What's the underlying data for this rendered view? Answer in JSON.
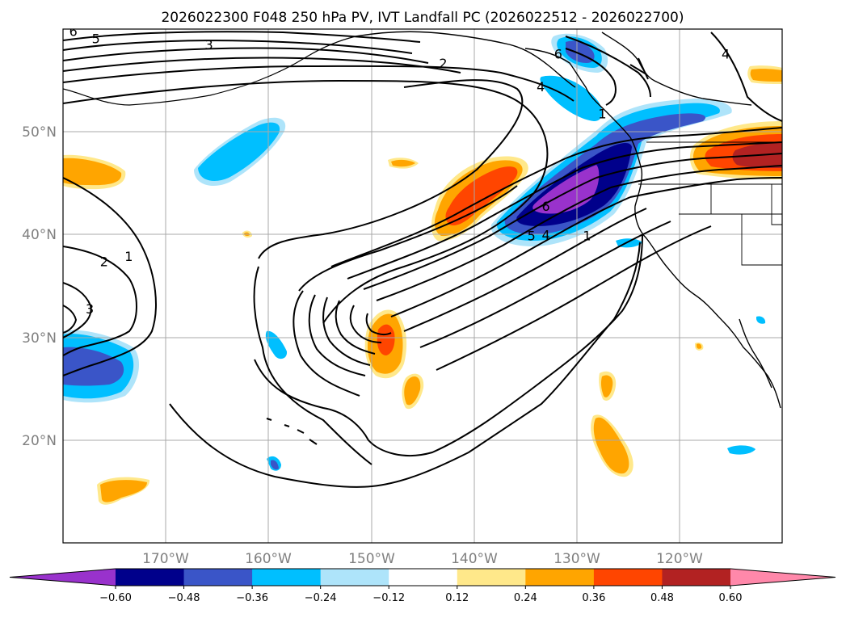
{
  "chart_data": {
    "type": "map-contour",
    "title": "2026022300 F048 250 hPa PV, IVT Landfall PC (2026022512 - 2026022700)",
    "lon_range": [
      180,
      110
    ],
    "lat_range": [
      10,
      60
    ],
    "x_ticks": [
      {
        "lon": 170,
        "label": "170°W"
      },
      {
        "lon": 160,
        "label": "160°W"
      },
      {
        "lon": 150,
        "label": "150°W"
      },
      {
        "lon": 140,
        "label": "140°W"
      },
      {
        "lon": 130,
        "label": "130°W"
      },
      {
        "lon": 120,
        "label": "120°W"
      }
    ],
    "y_ticks": [
      {
        "lat": 50,
        "label": "50°N"
      },
      {
        "lat": 40,
        "label": "40°N"
      },
      {
        "lat": 30,
        "label": "30°N"
      },
      {
        "lat": 20,
        "label": "20°N"
      }
    ],
    "colorbar": {
      "levels": [
        -0.6,
        -0.48,
        -0.36,
        -0.24,
        -0.12,
        0.12,
        0.24,
        0.36,
        0.48,
        0.6
      ],
      "tick_labels": [
        "−0.60",
        "−0.48",
        "−0.36",
        "−0.24",
        "−0.12",
        "0.12",
        "0.24",
        "0.36",
        "0.48",
        "0.60"
      ],
      "colors": [
        "#9932cc",
        "#00008b",
        "#3a55c8",
        "#00bfff",
        "#aee4fa",
        "#ffffff",
        "#ffe88a",
        "#ffa500",
        "#ff4500",
        "#b22222",
        "#ff88aa"
      ],
      "extend": "both"
    },
    "pv_contour_labels": [
      {
        "text": "6",
        "lon": 179.0,
        "lat": 59.8
      },
      {
        "text": "5",
        "lon": 176.8,
        "lat": 59.1
      },
      {
        "text": "3",
        "lon": 165.8,
        "lat": 58.5
      },
      {
        "text": "2",
        "lon": 143.0,
        "lat": 56.7
      },
      {
        "text": "6",
        "lon": 131.8,
        "lat": 57.6
      },
      {
        "text": "4",
        "lon": 133.5,
        "lat": 54.4
      },
      {
        "text": "1",
        "lon": 127.5,
        "lat": 51.8
      },
      {
        "text": "4",
        "lon": 115.5,
        "lat": 57.6
      },
      {
        "text": "2",
        "lon": 176.0,
        "lat": 37.4
      },
      {
        "text": "1",
        "lon": 173.6,
        "lat": 37.9
      },
      {
        "text": "3",
        "lon": 177.4,
        "lat": 32.8
      },
      {
        "text": "6",
        "lon": 133.0,
        "lat": 42.8
      },
      {
        "text": "5",
        "lon": 134.4,
        "lat": 39.9
      },
      {
        "text": "4",
        "lon": 133.0,
        "lat": 40.0
      },
      {
        "text": "1",
        "lon": 129.0,
        "lat": 39.9
      }
    ]
  }
}
